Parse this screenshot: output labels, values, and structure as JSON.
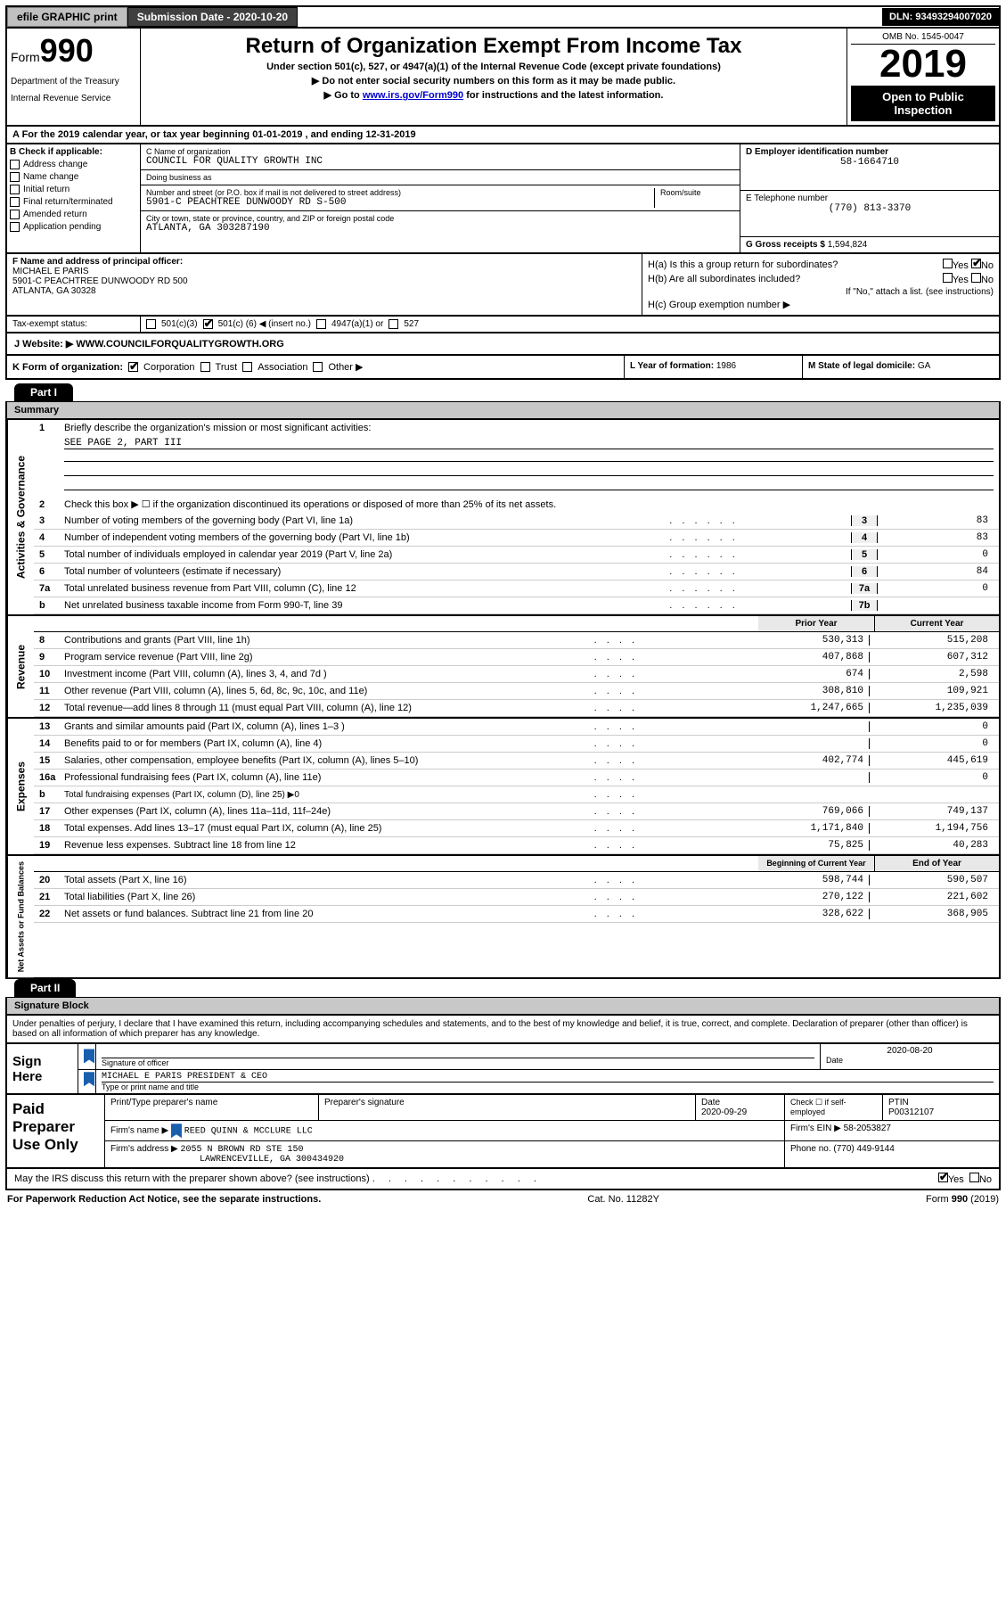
{
  "topbar": {
    "efile_label": "efile GRAPHIC print",
    "submission_date_label": "Submission Date - 2020-10-20",
    "dln": "DLN: 93493294007020"
  },
  "header": {
    "form_prefix": "Form",
    "form_number": "990",
    "dept": "Department of the Treasury",
    "irs": "Internal Revenue Service",
    "title": "Return of Organization Exempt From Income Tax",
    "sub1": "Under section 501(c), 527, or 4947(a)(1) of the Internal Revenue Code (except private foundations)",
    "sub2": "▶ Do not enter social security numbers on this form as it may be made public.",
    "sub3_pre": "▶ Go to ",
    "sub3_link": "www.irs.gov/Form990",
    "sub3_post": " for instructions and the latest information.",
    "omb": "OMB No. 1545-0047",
    "year": "2019",
    "open_pub1": "Open to Public",
    "open_pub2": "Inspection"
  },
  "line_a": "A For the 2019 calendar year, or tax year beginning 01-01-2019    , and ending 12-31-2019",
  "col_b": {
    "header": "B Check if applicable:",
    "items": [
      "Address change",
      "Name change",
      "Initial return",
      "Final return/terminated",
      "Amended return",
      "Application pending"
    ]
  },
  "col_c": {
    "name_label": "C Name of organization",
    "name_value": "COUNCIL FOR QUALITY GROWTH INC",
    "dba_label": "Doing business as",
    "dba_value": "",
    "addr_label": "Number and street (or P.O. box if mail is not delivered to street address)",
    "addr_value": "5901-C PEACHTREE DUNWOODY RD S-500",
    "room_label": "Room/suite",
    "city_label": "City or town, state or province, country, and ZIP or foreign postal code",
    "city_value": "ATLANTA, GA  303287190"
  },
  "col_de": {
    "ein_label": "D Employer identification number",
    "ein_value": "58-1664710",
    "phone_label": "E Telephone number",
    "phone_value": "(770) 813-3370",
    "gross_label": "G Gross receipts $",
    "gross_value": "1,594,824"
  },
  "row_f": {
    "label": "F  Name and address of principal officer:",
    "name": "MICHAEL E PARIS",
    "addr1": "5901-C PEACHTREE DUNWOODY RD 500",
    "addr2": "ATLANTA, GA  30328"
  },
  "row_h": {
    "ha": "H(a)  Is this a group return for subordinates?",
    "hb": "H(b)  Are all subordinates included?",
    "hb_note": "If \"No,\" attach a list. (see instructions)",
    "hc": "H(c)  Group exemption number ▶",
    "yes": "Yes",
    "no": "No"
  },
  "row_i": {
    "label": "Tax-exempt status:"
  },
  "row_i_opts": {
    "o1": "501(c)(3)",
    "o2_pre": "501(c) (",
    "o2_num": "6",
    "o2_post": ") ◀ (insert no.)",
    "o3": "4947(a)(1) or",
    "o4": "527"
  },
  "row_j": {
    "label": "J Website: ▶",
    "value": " WWW.COUNCILFORQUALITYGROWTH.ORG"
  },
  "row_k": {
    "label": "K Form of organization:",
    "corp": "Corporation",
    "trust": "Trust",
    "assoc": "Association",
    "other": "Other ▶"
  },
  "row_l": {
    "label": "L Year of formation:",
    "value": "1986"
  },
  "row_m": {
    "label": "M State of legal domicile:",
    "value": "GA"
  },
  "part1": {
    "hdr": "Part I",
    "title": "Summary"
  },
  "summary": {
    "q1": "Briefly describe the organization's mission or most significant activities:",
    "q1_value": "SEE PAGE 2, PART III",
    "q2": "Check this box ▶ ☐  if the organization discontinued its operations or disposed of more than 25% of its net assets.",
    "rows_a": [
      {
        "n": "3",
        "t": "Number of voting members of the governing body (Part VI, line 1a)",
        "b": "3",
        "v": "83"
      },
      {
        "n": "4",
        "t": "Number of independent voting members of the governing body (Part VI, line 1b)",
        "b": "4",
        "v": "83"
      },
      {
        "n": "5",
        "t": "Total number of individuals employed in calendar year 2019 (Part V, line 2a)",
        "b": "5",
        "v": "0"
      },
      {
        "n": "6",
        "t": "Total number of volunteers (estimate if necessary)",
        "b": "6",
        "v": "84"
      },
      {
        "n": "7a",
        "t": "Total unrelated business revenue from Part VIII, column (C), line 12",
        "b": "7a",
        "v": "0"
      },
      {
        "n": "b",
        "t": "Net unrelated business taxable income from Form 990-T, line 39",
        "b": "7b",
        "v": ""
      }
    ],
    "hdr_prior": "Prior Year",
    "hdr_current": "Current Year",
    "rows_rev": [
      {
        "n": "8",
        "t": "Contributions and grants (Part VIII, line 1h)",
        "p": "530,313",
        "c": "515,208"
      },
      {
        "n": "9",
        "t": "Program service revenue (Part VIII, line 2g)",
        "p": "407,868",
        "c": "607,312"
      },
      {
        "n": "10",
        "t": "Investment income (Part VIII, column (A), lines 3, 4, and 7d )",
        "p": "674",
        "c": "2,598"
      },
      {
        "n": "11",
        "t": "Other revenue (Part VIII, column (A), lines 5, 6d, 8c, 9c, 10c, and 11e)",
        "p": "308,810",
        "c": "109,921"
      },
      {
        "n": "12",
        "t": "Total revenue—add lines 8 through 11 (must equal Part VIII, column (A), line 12)",
        "p": "1,247,665",
        "c": "1,235,039"
      }
    ],
    "rows_exp": [
      {
        "n": "13",
        "t": "Grants and similar amounts paid (Part IX, column (A), lines 1–3 )",
        "p": "",
        "c": "0"
      },
      {
        "n": "14",
        "t": "Benefits paid to or for members (Part IX, column (A), line 4)",
        "p": "",
        "c": "0"
      },
      {
        "n": "15",
        "t": "Salaries, other compensation, employee benefits (Part IX, column (A), lines 5–10)",
        "p": "402,774",
        "c": "445,619"
      },
      {
        "n": "16a",
        "t": "Professional fundraising fees (Part IX, column (A), line 11e)",
        "p": "",
        "c": "0"
      },
      {
        "n": "b",
        "t": "Total fundraising expenses (Part IX, column (D), line 25) ▶0",
        "p": "",
        "c": ""
      },
      {
        "n": "17",
        "t": "Other expenses (Part IX, column (A), lines 11a–11d, 11f–24e)",
        "p": "769,066",
        "c": "749,137"
      },
      {
        "n": "18",
        "t": "Total expenses. Add lines 13–17 (must equal Part IX, column (A), line 25)",
        "p": "1,171,840",
        "c": "1,194,756"
      },
      {
        "n": "19",
        "t": "Revenue less expenses. Subtract line 18 from line 12",
        "p": "75,825",
        "c": "40,283"
      }
    ],
    "hdr_beg": "Beginning of Current Year",
    "hdr_end": "End of Year",
    "rows_net": [
      {
        "n": "20",
        "t": "Total assets (Part X, line 16)",
        "p": "598,744",
        "c": "590,507"
      },
      {
        "n": "21",
        "t": "Total liabilities (Part X, line 26)",
        "p": "270,122",
        "c": "221,602"
      },
      {
        "n": "22",
        "t": "Net assets or fund balances. Subtract line 21 from line 20",
        "p": "328,622",
        "c": "368,905"
      }
    ],
    "sidebars": {
      "ag": "Activities & Governance",
      "rev": "Revenue",
      "exp": "Expenses",
      "net": "Net Assets or Fund Balances"
    }
  },
  "part2": {
    "hdr": "Part II",
    "title": "Signature Block"
  },
  "sig_decl": "Under penalties of perjury, I declare that I have examined this return, including accompanying schedules and statements, and to the best of my knowledge and belief, it is true, correct, and complete. Declaration of preparer (other than officer) is based on all information of which preparer has any knowledge.",
  "sign_here": {
    "label": "Sign Here",
    "sig_officer": "Signature of officer",
    "date": "Date",
    "date_value": "2020-08-20",
    "name_value": "MICHAEL E PARIS  PRESIDENT & CEO",
    "name_label": "Type or print name and title"
  },
  "paid": {
    "label": "Paid Preparer Use Only",
    "h_name": "Print/Type preparer's name",
    "h_sig": "Preparer's signature",
    "h_date": "Date",
    "date_value": "2020-09-29",
    "h_check": "Check ☐ if self-employed",
    "h_ptin": "PTIN",
    "ptin_value": "P00312107",
    "firm_name_label": "Firm's name      ▶",
    "firm_name_value": "REED QUINN & MCCLURE LLC",
    "firm_ein_label": "Firm's EIN ▶",
    "firm_ein_value": "58-2053827",
    "firm_addr_label": "Firm's address ▶",
    "firm_addr1": "2055 N BROWN RD STE 150",
    "firm_addr2": "LAWRENCEVILLE, GA  300434920",
    "phone_label": "Phone no.",
    "phone_value": "(770) 449-9144"
  },
  "discuss": {
    "text": "May the IRS discuss this return with the preparer shown above? (see instructions)",
    "yes": "Yes",
    "no": "No"
  },
  "footer": {
    "left": "For Paperwork Reduction Act Notice, see the separate instructions.",
    "mid": "Cat. No. 11282Y",
    "right_pre": "Form ",
    "right_num": "990",
    "right_post": " (2019)"
  }
}
